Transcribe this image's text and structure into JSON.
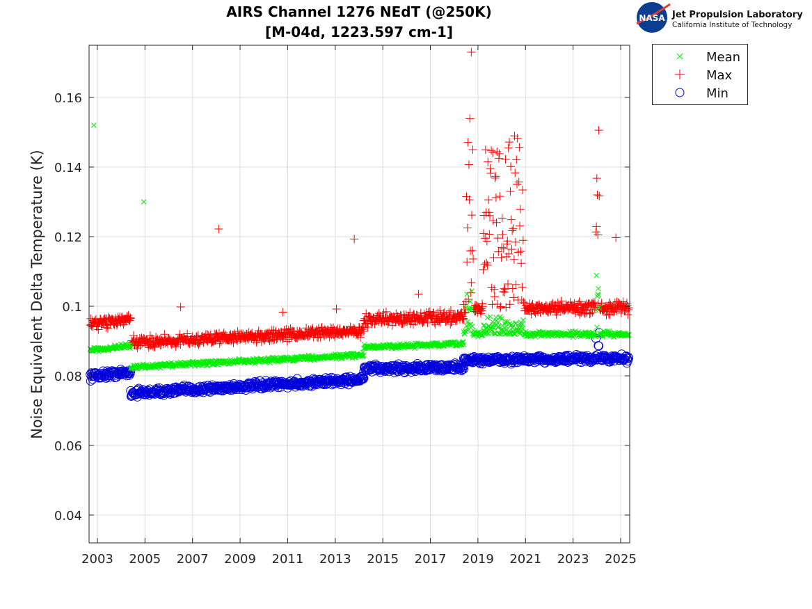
{
  "logo": {
    "emblem_text": "NASA",
    "line1": "Jet Propulsion Laboratory",
    "line2": "California Institute of Technology"
  },
  "chart_data": {
    "type": "scatter",
    "title": [
      "AIRS Channel 1276 NEdT (@250K)",
      "[M-04d, 1223.597 cm-1]"
    ],
    "xlabel": "",
    "ylabel": "Noise Equivalent Delta Temperature (K)",
    "xlim": [
      2002.65,
      2025.38
    ],
    "ylim": [
      0.032,
      0.175
    ],
    "xticks": [
      2003,
      2005,
      2007,
      2009,
      2011,
      2013,
      2015,
      2017,
      2019,
      2021,
      2023,
      2025
    ],
    "yticks": [
      0.04,
      0.06,
      0.08,
      0.1,
      0.12,
      0.14,
      0.16
    ],
    "ytick_labels": [
      "0.04",
      "0.06",
      "0.08",
      "0.1",
      "0.12",
      "0.14",
      "0.16"
    ],
    "grid": true,
    "legend_position": "outside-top-right",
    "colors": {
      "mean": "#00ee00",
      "max": "#ff0000",
      "min": "#0000dd"
    },
    "sampling_years": 0.02,
    "series": [
      {
        "name": "Mean",
        "key": "mean",
        "marker": "x",
        "segments": [
          {
            "from": 2002.7,
            "to": 2004.4,
            "start": 0.0875,
            "end": 0.0885,
            "noise": 0.0006
          },
          {
            "from": 2004.4,
            "to": 2014.2,
            "start": 0.0825,
            "end": 0.086,
            "noise": 0.0006
          },
          {
            "from": 2014.2,
            "to": 2018.4,
            "start": 0.0882,
            "end": 0.0892,
            "noise": 0.0006
          },
          {
            "from": 2018.4,
            "to": 2025.35,
            "start": 0.092,
            "end": 0.092,
            "noise": 0.0007
          }
        ],
        "spikes": [
          {
            "from": 2018.5,
            "to": 2018.8,
            "peak": 0.112
          },
          {
            "from": 2019.2,
            "to": 2020.9,
            "peak": 0.097
          },
          {
            "from": 2023.95,
            "to": 2024.1,
            "peak": 0.115
          }
        ],
        "outliers": [
          [
            2002.85,
            0.152
          ],
          [
            2004.95,
            0.13
          ]
        ]
      },
      {
        "name": "Max",
        "key": "max",
        "marker": "+",
        "segments": [
          {
            "from": 2002.7,
            "to": 2004.4,
            "start": 0.095,
            "end": 0.096,
            "noise": 0.0015
          },
          {
            "from": 2004.4,
            "to": 2014.2,
            "start": 0.0895,
            "end": 0.093,
            "noise": 0.0015
          },
          {
            "from": 2014.2,
            "to": 2018.4,
            "start": 0.096,
            "end": 0.097,
            "noise": 0.0015
          },
          {
            "from": 2018.4,
            "to": 2025.35,
            "start": 0.0995,
            "end": 0.0995,
            "noise": 0.0015
          }
        ],
        "spikes": [
          {
            "from": 2018.5,
            "to": 2018.8,
            "peak": 0.155
          },
          {
            "from": 2019.2,
            "to": 2020.9,
            "peak": 0.15
          },
          {
            "from": 2023.95,
            "to": 2024.1,
            "peak": 0.154
          }
        ],
        "outliers": [
          [
            2008.1,
            0.1222
          ],
          [
            2013.8,
            0.1193
          ],
          [
            2006.5,
            0.0998
          ],
          [
            2024.8,
            0.1197
          ],
          [
            2018.72,
            0.173
          ],
          [
            2016.5,
            0.1035
          ],
          [
            2013.05,
            0.0992
          ],
          [
            2010.8,
            0.0983
          ]
        ]
      },
      {
        "name": "Min",
        "key": "min",
        "marker": "o",
        "segments": [
          {
            "from": 2002.7,
            "to": 2004.4,
            "start": 0.08,
            "end": 0.081,
            "noise": 0.001
          },
          {
            "from": 2004.4,
            "to": 2014.2,
            "start": 0.075,
            "end": 0.079,
            "noise": 0.001
          },
          {
            "from": 2014.2,
            "to": 2018.4,
            "start": 0.082,
            "end": 0.0825,
            "noise": 0.001
          },
          {
            "from": 2018.4,
            "to": 2025.35,
            "start": 0.0845,
            "end": 0.085,
            "noise": 0.001
          }
        ],
        "spikes": [
          {
            "from": 2023.95,
            "to": 2024.1,
            "peak": 0.097
          }
        ],
        "outliers": []
      }
    ]
  }
}
